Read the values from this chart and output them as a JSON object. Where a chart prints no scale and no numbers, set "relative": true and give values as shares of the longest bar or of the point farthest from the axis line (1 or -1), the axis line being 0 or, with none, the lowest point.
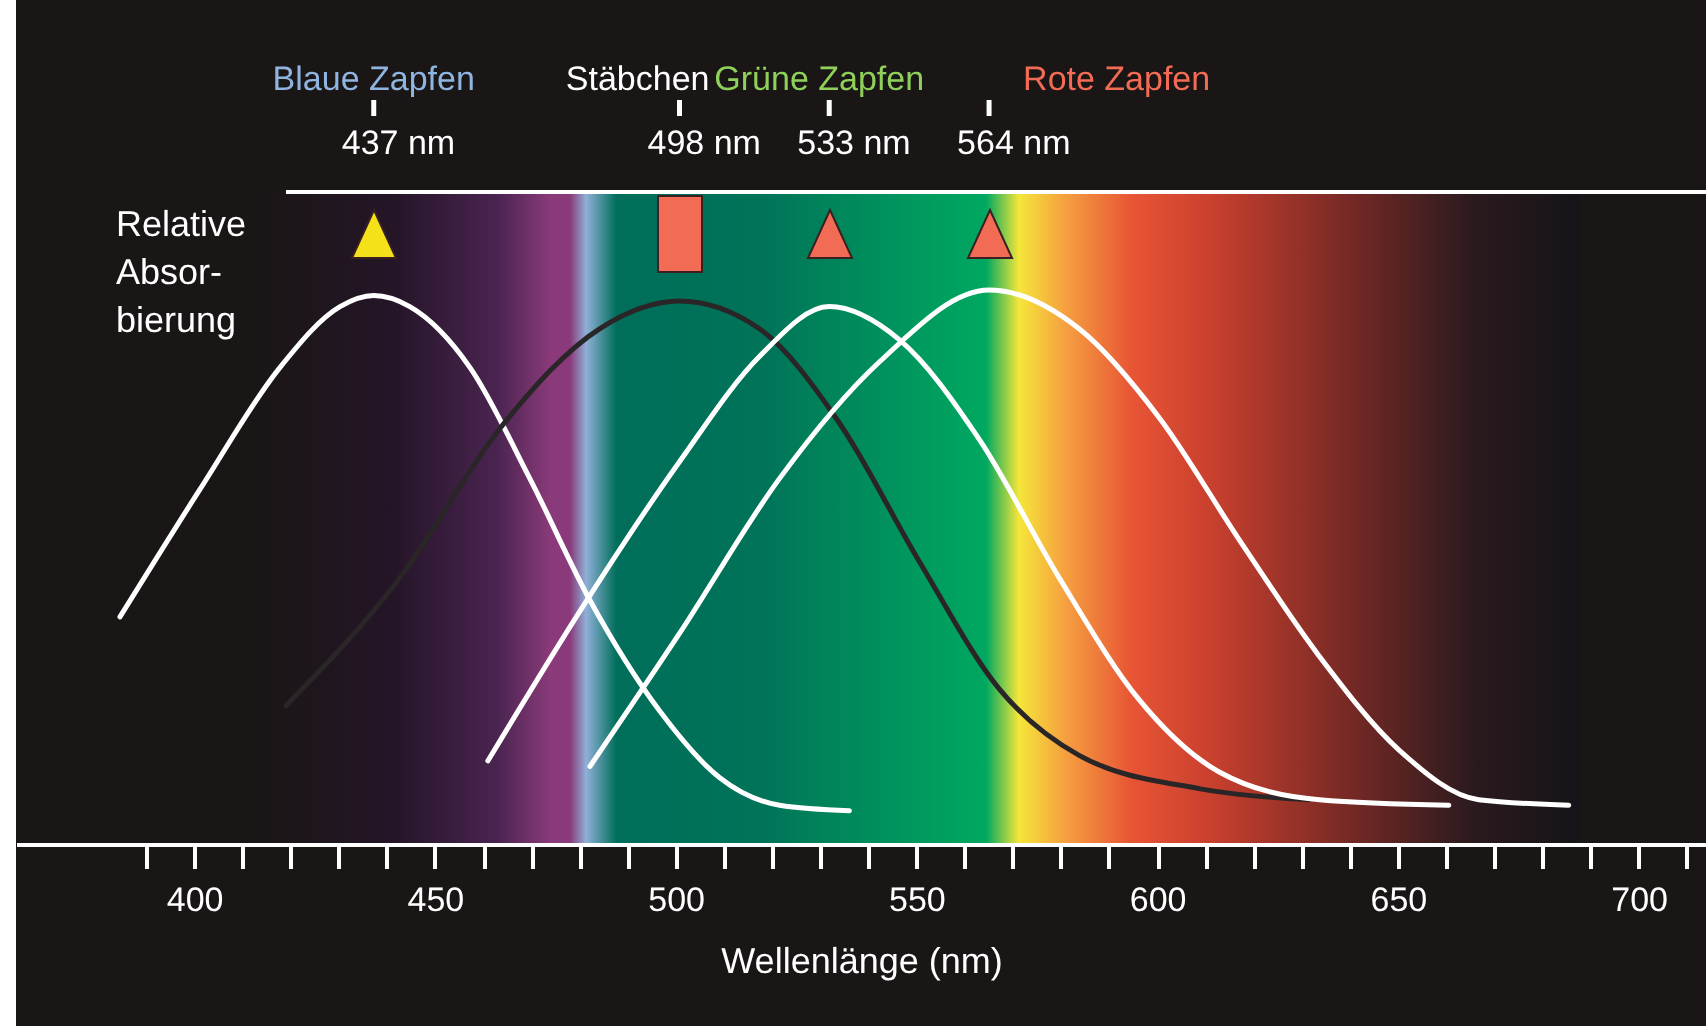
{
  "chart_data": {
    "type": "line",
    "relative": true,
    "xlabel": "Wellenlänge (nm)",
    "ylabel": "Relative\nAbsor-\nbierung",
    "xlim": [
      363,
      714
    ],
    "xticks": [
      {
        "value": 390,
        "label": null
      },
      400,
      {
        "value": 410,
        "label": null
      },
      {
        "value": 420,
        "label": null
      },
      {
        "value": 430,
        "label": null
      },
      {
        "value": 440,
        "label": null
      },
      450,
      {
        "value": 460,
        "label": null
      },
      {
        "value": 470,
        "label": null
      },
      {
        "value": 480,
        "label": null
      },
      {
        "value": 490,
        "label": null
      },
      500,
      {
        "value": 510,
        "label": null
      },
      {
        "value": 520,
        "label": null
      },
      {
        "value": 530,
        "label": null
      },
      {
        "value": 540,
        "label": null
      },
      550,
      {
        "value": 560,
        "label": null
      },
      {
        "value": 570,
        "label": null
      },
      {
        "value": 580,
        "label": null
      },
      {
        "value": 590,
        "label": null
      },
      600,
      {
        "value": 610,
        "label": null
      },
      {
        "value": 620,
        "label": null
      },
      {
        "value": 630,
        "label": null
      },
      {
        "value": 640,
        "label": null
      },
      650,
      {
        "value": 660,
        "label": null
      },
      {
        "value": 670,
        "label": null
      },
      {
        "value": 680,
        "label": null
      },
      {
        "value": 690,
        "label": null
      },
      700,
      {
        "value": 710,
        "label": null
      }
    ],
    "grid": false,
    "legend": false,
    "marker": "none",
    "line_style": "solid",
    "series": [
      {
        "color": "#ffffff",
        "x": [
          384.6,
          401.2,
          417.8,
          430.3,
          437.3,
          444.8,
          457.3,
          469.7,
          482.2,
          496.7,
          509.1,
          521.6,
          536.1
        ],
        "values": [
          0.41,
          0.64,
          0.86,
          0.97,
          0.99,
          0.97,
          0.86,
          0.66,
          0.44,
          0.24,
          0.12,
          0.07,
          0.06
        ]
      },
      {
        "color": "#2a2627",
        "x": [
          419.1,
          442.7,
          463.5,
          484.2,
          500.8,
          517.4,
          534.0,
          550.6,
          567.2,
          583.8,
          608.7,
          631.5
        ],
        "values": [
          0.25,
          0.48,
          0.75,
          0.93,
          0.98,
          0.93,
          0.76,
          0.51,
          0.28,
          0.16,
          0.1,
          0.08
        ]
      },
      {
        "color": "#ffffff",
        "x": [
          461.0,
          480.1,
          500.8,
          517.4,
          531.9,
          546.5,
          563.1,
          579.7,
          596.3,
          612.9,
          633.7,
          660.6
        ],
        "values": [
          0.15,
          0.42,
          0.69,
          0.88,
          0.97,
          0.91,
          0.73,
          0.48,
          0.26,
          0.13,
          0.08,
          0.07
        ]
      },
      {
        "color": "#ffffff",
        "x": [
          482.2,
          500.8,
          521.6,
          542.3,
          565.1,
          583.8,
          600.4,
          617.0,
          633.6,
          650.2,
          666.8,
          685.5
        ],
        "values": [
          0.14,
          0.38,
          0.66,
          0.87,
          1.0,
          0.93,
          0.77,
          0.55,
          0.34,
          0.17,
          0.08,
          0.07
        ]
      }
    ],
    "annotations": [
      "Blaue Zapfen",
      "Stäbchen",
      "Grüne Zapfen",
      "Rote Zapfen",
      "437 nm",
      "498 nm",
      "533 nm",
      "564 nm"
    ]
  }
}
